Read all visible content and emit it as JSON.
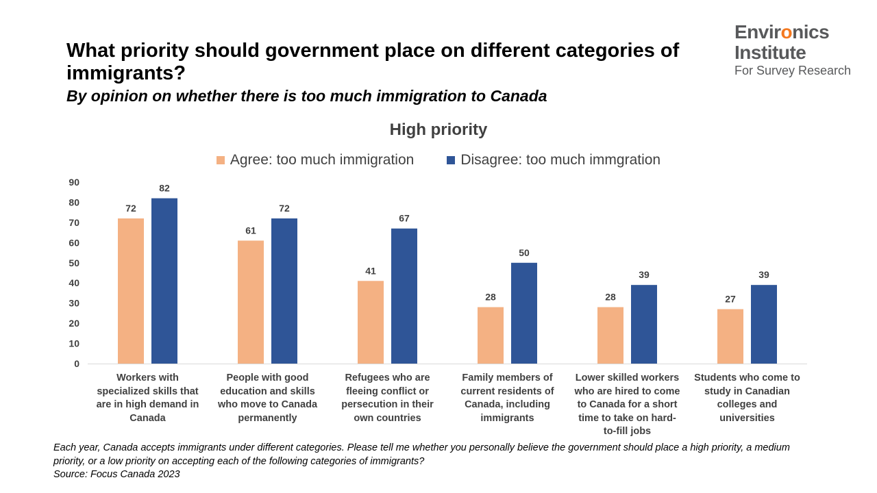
{
  "header": {
    "title": "What priority should government place on different categories of immigrants?",
    "subtitle": "By opinion on whether there is too much immigration to Canada"
  },
  "logo": {
    "line1_pre": "Envir",
    "line1_o": "o",
    "line1_post": "nics",
    "line2": "Institute",
    "line3": "For Survey Research"
  },
  "footnote": {
    "question": "Each year, Canada accepts immigrants under different categories. Please tell me whether you personally believe the government should place a high priority, a medium priority, or a low priority on accepting each of the following categories of immigrants?",
    "source": "Source: Focus Canada 2023"
  },
  "chart_data": {
    "type": "bar",
    "title": "High priority",
    "xlabel": "",
    "ylabel": "",
    "ylim": [
      0,
      90
    ],
    "yticks": [
      0,
      10,
      20,
      30,
      40,
      50,
      60,
      70,
      80,
      90
    ],
    "grid": false,
    "legend_position": "top",
    "categories": [
      "Workers with specialized skills that are in high demand in Canada",
      "People with good education and skills who move to Canada permanently",
      "Refugees who are fleeing conflict or persecution in their own countries",
      "Family members of current residents of Canada, including immigrants",
      "Lower skilled workers who are hired to come to Canada for a short time to take on hard-to-fill jobs",
      "Students who come to study in Canadian colleges and universities"
    ],
    "category_lines": [
      [
        "Workers with",
        "specialized skills that",
        "are in high demand in",
        "Canada"
      ],
      [
        "People with good",
        "education and skills",
        "who move to Canada",
        "permanently"
      ],
      [
        "Refugees who are",
        "fleeing conflict or",
        "persecution in their",
        "own countries"
      ],
      [
        "Family members of",
        "current residents of",
        "Canada, including",
        "immigrants"
      ],
      [
        "Lower skilled workers",
        "who are hired to come",
        "to Canada for a short",
        "time to take on hard-",
        "to-fill jobs"
      ],
      [
        "Students who come to",
        "study in Canadian",
        "colleges and",
        "universities"
      ]
    ],
    "series": [
      {
        "name": "Agree: too much immigration",
        "color": "#f4b183",
        "values": [
          72,
          61,
          41,
          28,
          28,
          27
        ]
      },
      {
        "name": "Disagree: too much immgration",
        "color": "#2f5597",
        "values": [
          82,
          72,
          67,
          50,
          39,
          39
        ]
      }
    ]
  }
}
